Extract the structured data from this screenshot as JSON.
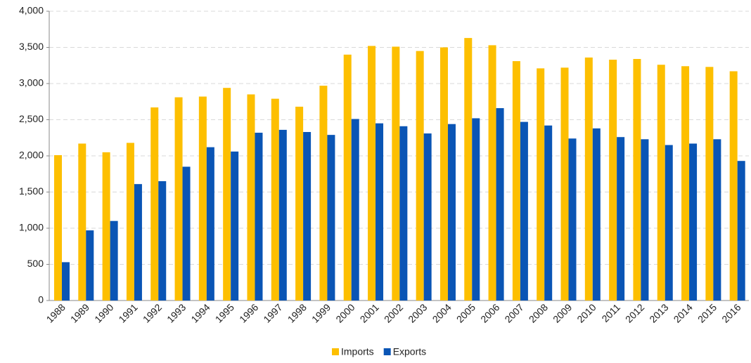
{
  "chart_data": {
    "type": "bar",
    "categories": [
      "1988",
      "1989",
      "1990",
      "1991",
      "1992",
      "1993",
      "1994",
      "1995",
      "1996",
      "1997",
      "1998",
      "1999",
      "2000",
      "2001",
      "2002",
      "2003",
      "2004",
      "2005",
      "2006",
      "2007",
      "2008",
      "2009",
      "2010",
      "2011",
      "2012",
      "2013",
      "2014",
      "2015",
      "2016"
    ],
    "series": [
      {
        "name": "Imports",
        "color": "#fdbf00",
        "values": [
          2010,
          2170,
          2050,
          2180,
          2670,
          2810,
          2820,
          2940,
          2850,
          2790,
          2680,
          2970,
          3400,
          3520,
          3510,
          3450,
          3500,
          3630,
          3530,
          3310,
          3210,
          3220,
          3360,
          3330,
          3340,
          3260,
          3240,
          3230,
          3170
        ]
      },
      {
        "name": "Exports",
        "color": "#0a55b5",
        "values": [
          530,
          970,
          1100,
          1610,
          1650,
          1850,
          2120,
          2060,
          2320,
          2360,
          2330,
          2290,
          2510,
          2450,
          2410,
          2310,
          2440,
          2520,
          2660,
          2470,
          2420,
          2240,
          2380,
          2260,
          2230,
          2150,
          2170,
          2230,
          1930
        ]
      }
    ],
    "ylim": [
      0,
      4000
    ],
    "yticks": [
      0,
      500,
      {
        "value": 1000,
        "label": "1,000"
      },
      {
        "value": 1500,
        "label": "1,500"
      },
      {
        "value": 2000,
        "label": "2,000"
      },
      {
        "value": 2500,
        "label": "2,500"
      },
      {
        "value": 3000,
        "label": "3,000"
      },
      {
        "value": 3500,
        "label": "3,500"
      },
      {
        "value": 4000,
        "label": "4,000"
      }
    ],
    "grid": true,
    "legend": "bottom"
  }
}
